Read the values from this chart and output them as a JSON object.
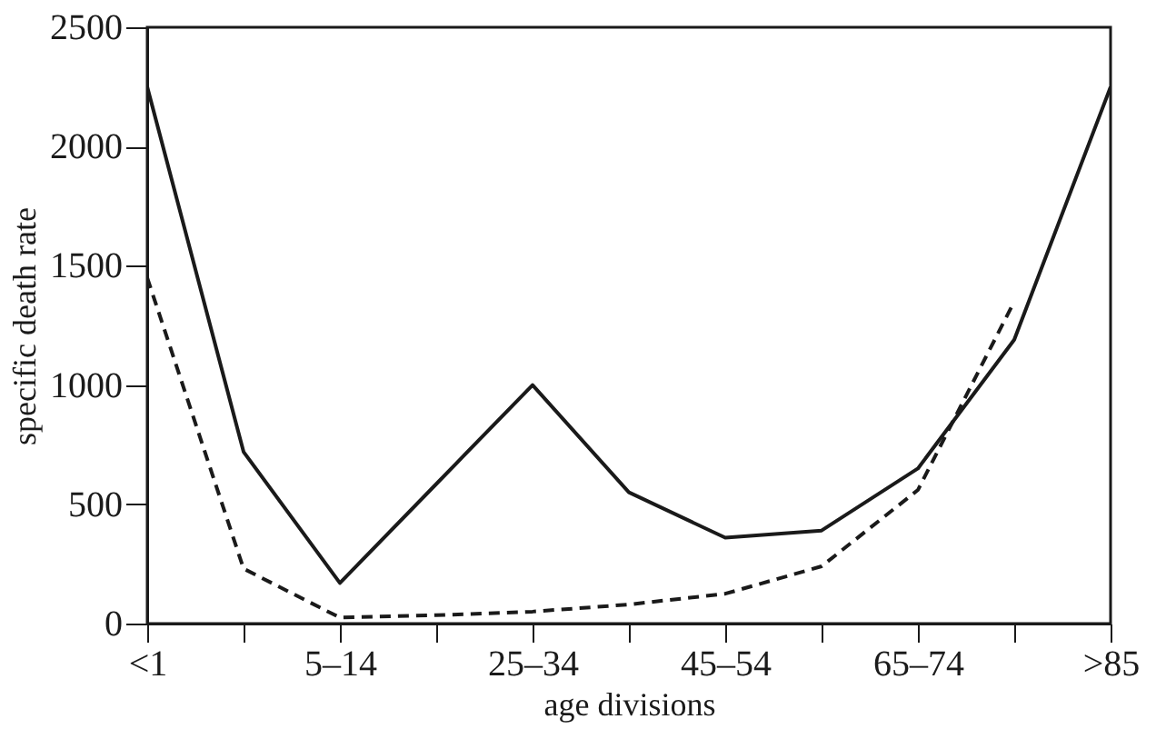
{
  "chart_data": {
    "type": "line",
    "xlabel": "age divisions",
    "ylabel": "specific death rate",
    "categories": [
      "<1",
      null,
      "5–14",
      null,
      "25–34",
      null,
      "45–54",
      null,
      "65–74",
      null,
      ">85"
    ],
    "series": [
      {
        "color": "#1a1a1a",
        "line_style": "solid",
        "values": [
          2250,
          720,
          170,
          585,
          1000,
          550,
          360,
          390,
          650,
          1190,
          2250
        ]
      },
      {
        "color": "#1a1a1a",
        "line_style": "dashed",
        "values": [
          1450,
          230,
          25,
          35,
          50,
          80,
          125,
          240,
          560,
          1350,
          null
        ]
      }
    ],
    "ylim": [
      0,
      2500
    ],
    "yticks": [
      0,
      500,
      1000,
      1500,
      2000,
      2500
    ],
    "grid": false,
    "marker": "none"
  }
}
